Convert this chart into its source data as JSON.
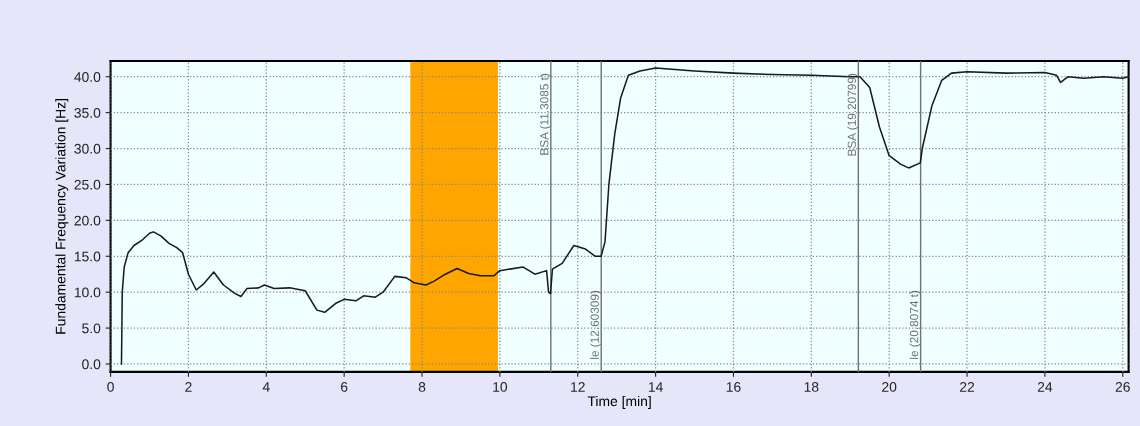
{
  "chart_data": {
    "type": "line",
    "xlabel": "Time [min]",
    "ylabel": "Fundamental Frequency Variation [Hz]",
    "x": [
      0.28,
      0.3,
      0.35,
      0.45,
      0.6,
      0.8,
      1.0,
      1.1,
      1.3,
      1.5,
      1.7,
      1.85,
      2.0,
      2.2,
      2.4,
      2.65,
      2.9,
      3.2,
      3.35,
      3.5,
      3.8,
      3.95,
      4.2,
      4.6,
      5.0,
      5.3,
      5.5,
      5.8,
      6.0,
      6.3,
      6.5,
      6.8,
      7.0,
      7.3,
      7.6,
      7.8,
      8.1,
      8.3,
      8.6,
      8.9,
      9.2,
      9.5,
      9.85,
      10.0,
      10.6,
      10.9,
      11.2,
      11.25,
      11.3,
      11.35,
      11.6,
      11.9,
      12.2,
      12.45,
      12.6,
      12.7,
      12.8,
      12.95,
      13.1,
      13.3,
      13.6,
      14.0,
      14.5,
      15.0,
      16.0,
      17.0,
      18.0,
      19.0,
      19.25,
      19.5,
      19.75,
      20.0,
      20.3,
      20.5,
      20.8,
      20.85,
      21.1,
      21.35,
      21.6,
      22.0,
      23.0,
      24.0,
      24.3,
      24.4,
      24.6,
      25.0,
      25.5,
      26.0,
      26.15
    ],
    "series": [
      {
        "color": "#1a1a1a",
        "values": [
          0,
          10,
          13.5,
          15.5,
          16.5,
          17.2,
          18.2,
          18.4,
          17.8,
          16.8,
          16.2,
          15.5,
          12.5,
          10.3,
          11.2,
          12.8,
          11.0,
          9.8,
          9.4,
          10.5,
          10.6,
          11.0,
          10.5,
          10.6,
          10.2,
          7.5,
          7.2,
          8.5,
          9.0,
          8.8,
          9.5,
          9.3,
          10.0,
          12.2,
          12.0,
          11.3,
          11.0,
          11.5,
          12.5,
          13.3,
          12.6,
          12.3,
          12.3,
          13.0,
          13.5,
          12.5,
          13.0,
          10.0,
          9.8,
          13.2,
          14.0,
          16.5,
          16.0,
          15.0,
          15.0,
          17,
          25,
          32,
          37,
          40.2,
          40.8,
          41.2,
          41.0,
          40.8,
          40.5,
          40.3,
          40.2,
          40.0,
          40.0,
          38.5,
          33,
          29,
          27.8,
          27.3,
          28,
          30,
          36,
          39.5,
          40.5,
          40.7,
          40.5,
          40.6,
          40.2,
          39.2,
          40,
          39.8,
          40.0,
          39.8,
          40.0
        ]
      }
    ],
    "xlim": [
      0,
      26.15
    ],
    "xticks": [
      0,
      2,
      4,
      6,
      8,
      10,
      12,
      14,
      16,
      18,
      20,
      22,
      24,
      26
    ],
    "ylim": [
      -1.1,
      42.2
    ],
    "yticks": [
      {
        "value": 0,
        "label": "0.0"
      },
      {
        "value": 5,
        "label": "5.0"
      },
      {
        "value": 10,
        "label": "10.0"
      },
      {
        "value": 15,
        "label": "15.0"
      },
      {
        "value": 20,
        "label": "20.0"
      },
      {
        "value": 25,
        "label": "25.0"
      },
      {
        "value": 30,
        "label": "30.0"
      },
      {
        "value": 35,
        "label": "35.0"
      },
      {
        "value": 40,
        "label": "40.0"
      }
    ],
    "grid": true,
    "marker": "none",
    "line_style": "solid",
    "ref_lines": [
      {
        "axis": "x",
        "value": 11.3085,
        "label": "BSA (11.3085 t)",
        "color": "#707070"
      },
      {
        "axis": "x",
        "value": 12.60309,
        "label": "le (12.60309)",
        "color": "#707070"
      },
      {
        "axis": "x",
        "value": 19.20799,
        "label": "BSA (19.20799)",
        "color": "#707070"
      },
      {
        "axis": "x",
        "value": 20.8074,
        "label": "le (20.8074 t)",
        "color": "#707070"
      }
    ],
    "bands": [
      {
        "axis": "x",
        "from": 7.7,
        "to": 9.95,
        "color": "#ffa500"
      }
    ]
  }
}
